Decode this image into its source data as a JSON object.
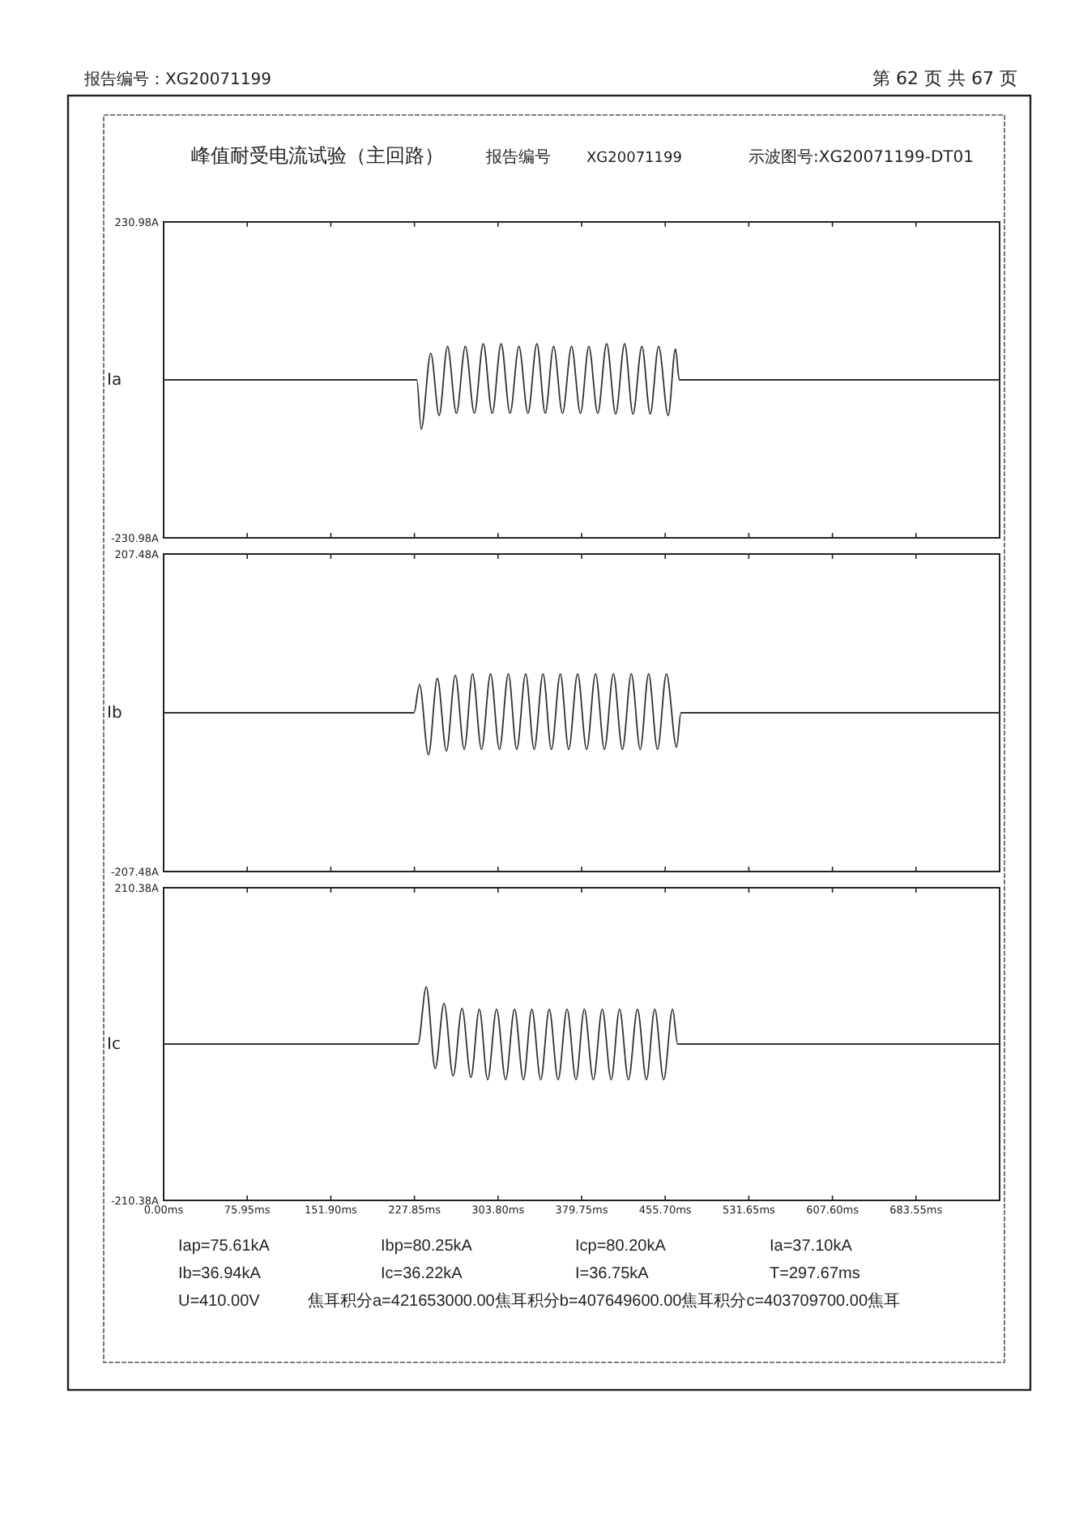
{
  "chart_data": [
    {
      "type": "line",
      "title": "峰值耐受电流试验（主回路）",
      "ylabel": "Ia",
      "tick_labels": "y",
      "annotations": [
        "报告编号：XG20071199",
        "第 62 页 共 67 页",
        "报告编号",
        "XG20071199",
        "示波图号:XG20071199-DT01"
      ],
      "xlim": [
        0,
        759.5
      ],
      "xticks": [
        {
          "value": 0,
          "label": null
        },
        {
          "value": 75.95,
          "label": null
        },
        {
          "value": 151.9,
          "label": null
        },
        {
          "value": 227.85,
          "label": null
        },
        {
          "value": 303.8,
          "label": null
        },
        {
          "value": 379.75,
          "label": null
        },
        {
          "value": 455.7,
          "label": null
        },
        {
          "value": 531.65,
          "label": null
        },
        {
          "value": 607.6,
          "label": null
        },
        {
          "value": 683.55,
          "label": null
        }
      ],
      "ylim": [
        -230.98,
        230.98
      ],
      "yticks": [
        {
          "value": 230.98,
          "label": "230.98A"
        },
        {
          "value": -230.98,
          "label": "-230.98A"
        }
      ],
      "series": [
        {
          "color": "#333333",
          "x": [
            0,
            230.0,
            234.0,
            242.7,
            250.3,
            257.9,
            266.0,
            274.1,
            282.3,
            290.4,
            298.5,
            306.6,
            314.7,
            322.8,
            331.0,
            339.1,
            346.7,
            354.3,
            362.4,
            370.6,
            378.7,
            386.3,
            394.4,
            402.5,
            410.7,
            418.8,
            426.4,
            434.5,
            442.1,
            449.7,
            458.4,
            465.0,
            468.5,
            759.5
          ],
          "values": [
            0,
            0,
            -72,
            39,
            -52,
            49,
            -49,
            49,
            -49,
            53,
            -49,
            53,
            -49,
            49,
            -49,
            53,
            -49,
            49,
            -49,
            49,
            -49,
            49,
            -49,
            53,
            -50,
            53,
            -50,
            49,
            -50,
            49,
            -52,
            45,
            0,
            0
          ]
        }
      ]
    },
    {
      "type": "line",
      "ylabel": "Ib",
      "tick_labels": "y",
      "xlim": [
        0,
        759.5
      ],
      "xticks": [
        {
          "value": 0,
          "label": null
        },
        {
          "value": 75.95,
          "label": null
        },
        {
          "value": 151.9,
          "label": null
        },
        {
          "value": 227.85,
          "label": null
        },
        {
          "value": 303.8,
          "label": null
        },
        {
          "value": 379.75,
          "label": null
        },
        {
          "value": 455.7,
          "label": null
        },
        {
          "value": 531.65,
          "label": null
        },
        {
          "value": 607.6,
          "label": null
        },
        {
          "value": 683.55,
          "label": null
        }
      ],
      "ylim": [
        -207.48,
        207.48
      ],
      "yticks": [
        {
          "value": 207.48,
          "label": "207.48A"
        },
        {
          "value": -207.48,
          "label": "-207.48A"
        }
      ],
      "series": [
        {
          "color": "#333333",
          "x": [
            0,
            227.4,
            232.5,
            240.6,
            248.7,
            256.9,
            265.0,
            273.1,
            280.7,
            288.8,
            297.0,
            305.1,
            313.2,
            320.8,
            328.9,
            336.6,
            344.7,
            352.3,
            360.4,
            368.0,
            376.1,
            384.3,
            392.4,
            400.5,
            408.6,
            416.8,
            424.9,
            433.0,
            440.6,
            448.7,
            456.8,
            466.0,
            470.0,
            759.5
          ],
          "values": [
            0,
            0,
            37,
            -55,
            45,
            -50,
            49,
            -48,
            51,
            -48,
            51,
            -48,
            51,
            -48,
            51,
            -48,
            51,
            -48,
            51,
            -48,
            51,
            -48,
            51,
            -48,
            51,
            -48,
            51,
            -48,
            51,
            -48,
            51,
            -45,
            0,
            0
          ]
        }
      ]
    },
    {
      "type": "line",
      "ylabel": "Ic",
      "annotations": [
        "Iap=75.61kA",
        "Ibp=80.25kA",
        "Icp=80.20kA",
        "Ia=37.10kA",
        "Ib=36.94kA",
        "Ic=36.22kA",
        "I=36.75kA",
        "T=297.67ms",
        "U=410.00V",
        "焦耳积分a=421653000.00焦耳积分b=407649600.00焦耳积分c=403709700.00焦耳"
      ],
      "xlim": [
        0,
        759.5
      ],
      "xticks": [
        {
          "value": 0,
          "label": "0.00ms"
        },
        {
          "value": 75.95,
          "label": "75.95ms"
        },
        {
          "value": 151.9,
          "label": "151.90ms"
        },
        {
          "value": 227.85,
          "label": "227.85ms"
        },
        {
          "value": 303.8,
          "label": "303.80ms"
        },
        {
          "value": 379.75,
          "label": "379.75ms"
        },
        {
          "value": 455.7,
          "label": "455.70ms"
        },
        {
          "value": 531.65,
          "label": "531.65ms"
        },
        {
          "value": 607.6,
          "label": "607.60ms"
        },
        {
          "value": 683.55,
          "label": "683.55ms"
        }
      ],
      "ylim": [
        -210.38,
        210.38
      ],
      "yticks": [
        {
          "value": 210.38,
          "label": "210.38A"
        },
        {
          "value": -210.38,
          "label": "-210.38A"
        }
      ],
      "series": [
        {
          "color": "#333333",
          "x": [
            0,
            231.0,
            238.6,
            246.7,
            254.8,
            263.0,
            271.1,
            279.2,
            286.8,
            294.4,
            302.5,
            310.7,
            318.8,
            326.9,
            334.5,
            342.6,
            350.3,
            358.4,
            366.5,
            374.6,
            382.2,
            390.4,
            398.5,
            406.6,
            414.2,
            422.3,
            430.5,
            438.6,
            446.2,
            454.3,
            462.4,
            467.0,
            759.5
          ],
          "values": [
            0,
            0,
            77,
            -33,
            55,
            -43,
            48,
            -45,
            47,
            -48,
            47,
            -48,
            47,
            -48,
            47,
            -48,
            47,
            -48,
            47,
            -48,
            47,
            -48,
            47,
            -48,
            47,
            -48,
            47,
            -48,
            47,
            -48,
            47,
            0,
            0
          ]
        }
      ]
    }
  ]
}
